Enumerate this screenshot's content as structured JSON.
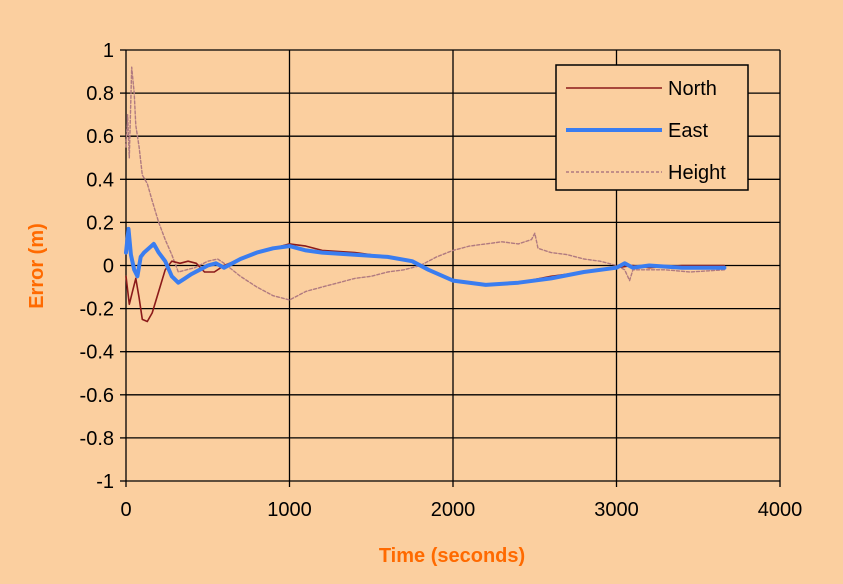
{
  "colors": {
    "background": "#fbcf9f",
    "plot_area": "#fbcf9f",
    "grid": "#000000",
    "axis_title": "#ff6a00"
  },
  "chart_data": {
    "type": "line",
    "title": "",
    "xlabel": "Time (seconds)",
    "ylabel": "Error (m)",
    "xlim": [
      0,
      4000
    ],
    "ylim": [
      -1,
      1
    ],
    "x_ticks": [
      0,
      1000,
      2000,
      3000,
      4000
    ],
    "y_ticks": [
      1,
      0.8,
      0.6,
      0.4,
      0.2,
      0,
      -0.2,
      -0.4,
      -0.6,
      -0.8,
      -1
    ],
    "x_tick_labels": [
      "0",
      "1000",
      "2000",
      "3000",
      "4000"
    ],
    "y_tick_labels": [
      "1",
      "0.8",
      "0.6",
      "0.4",
      "0.2",
      "0",
      "-0.2",
      "-0.4",
      "-0.6",
      "-0.8",
      "-1"
    ],
    "grid": true,
    "legend_position": "top-right",
    "series": [
      {
        "name": "North",
        "color": "#8b1a1a",
        "style": "solid-thin",
        "points": [
          [
            0,
            -0.05
          ],
          [
            20,
            -0.18
          ],
          [
            40,
            -0.12
          ],
          [
            60,
            -0.06
          ],
          [
            80,
            -0.15
          ],
          [
            100,
            -0.25
          ],
          [
            130,
            -0.26
          ],
          [
            160,
            -0.22
          ],
          [
            200,
            -0.12
          ],
          [
            240,
            -0.02
          ],
          [
            280,
            0.02
          ],
          [
            330,
            0.01
          ],
          [
            380,
            0.02
          ],
          [
            430,
            0.01
          ],
          [
            480,
            -0.03
          ],
          [
            540,
            -0.03
          ],
          [
            600,
            0.0
          ],
          [
            700,
            0.03
          ],
          [
            800,
            0.06
          ],
          [
            900,
            0.08
          ],
          [
            1000,
            0.1
          ],
          [
            1100,
            0.09
          ],
          [
            1200,
            0.07
          ],
          [
            1400,
            0.06
          ],
          [
            1600,
            0.04
          ],
          [
            1750,
            0.02
          ],
          [
            1850,
            -0.02
          ],
          [
            2000,
            -0.07
          ],
          [
            2200,
            -0.09
          ],
          [
            2400,
            -0.08
          ],
          [
            2600,
            -0.05
          ],
          [
            2800,
            -0.03
          ],
          [
            3000,
            -0.01
          ],
          [
            3100,
            0.0
          ],
          [
            3200,
            -0.01
          ],
          [
            3400,
            0.0
          ],
          [
            3660,
            0.0
          ]
        ]
      },
      {
        "name": "East",
        "color": "#3a7df0",
        "style": "solid-thick",
        "points": [
          [
            0,
            0.06
          ],
          [
            15,
            0.17
          ],
          [
            30,
            0.05
          ],
          [
            50,
            -0.02
          ],
          [
            70,
            -0.05
          ],
          [
            90,
            0.04
          ],
          [
            110,
            0.06
          ],
          [
            140,
            0.08
          ],
          [
            170,
            0.1
          ],
          [
            200,
            0.06
          ],
          [
            240,
            0.02
          ],
          [
            280,
            -0.05
          ],
          [
            320,
            -0.08
          ],
          [
            360,
            -0.06
          ],
          [
            400,
            -0.04
          ],
          [
            450,
            -0.02
          ],
          [
            500,
            0.0
          ],
          [
            550,
            0.01
          ],
          [
            600,
            -0.01
          ],
          [
            700,
            0.03
          ],
          [
            800,
            0.06
          ],
          [
            900,
            0.08
          ],
          [
            1000,
            0.09
          ],
          [
            1100,
            0.07
          ],
          [
            1200,
            0.06
          ],
          [
            1400,
            0.05
          ],
          [
            1600,
            0.04
          ],
          [
            1750,
            0.02
          ],
          [
            1850,
            -0.02
          ],
          [
            2000,
            -0.07
          ],
          [
            2200,
            -0.09
          ],
          [
            2400,
            -0.08
          ],
          [
            2600,
            -0.06
          ],
          [
            2800,
            -0.03
          ],
          [
            3000,
            -0.01
          ],
          [
            3050,
            0.01
          ],
          [
            3100,
            -0.01
          ],
          [
            3200,
            0.0
          ],
          [
            3400,
            -0.01
          ],
          [
            3660,
            -0.01
          ]
        ]
      },
      {
        "name": "Height",
        "color": "#b07a80",
        "style": "dashed-thin",
        "points": [
          [
            0,
            0.55
          ],
          [
            10,
            0.7
          ],
          [
            20,
            0.5
          ],
          [
            35,
            0.92
          ],
          [
            50,
            0.8
          ],
          [
            60,
            0.65
          ],
          [
            80,
            0.55
          ],
          [
            100,
            0.42
          ],
          [
            130,
            0.38
          ],
          [
            160,
            0.3
          ],
          [
            200,
            0.2
          ],
          [
            240,
            0.12
          ],
          [
            280,
            0.05
          ],
          [
            320,
            -0.03
          ],
          [
            370,
            -0.02
          ],
          [
            420,
            -0.01
          ],
          [
            500,
            0.02
          ],
          [
            560,
            0.03
          ],
          [
            600,
            0.01
          ],
          [
            700,
            -0.05
          ],
          [
            800,
            -0.1
          ],
          [
            900,
            -0.14
          ],
          [
            1000,
            -0.16
          ],
          [
            1100,
            -0.12
          ],
          [
            1200,
            -0.1
          ],
          [
            1300,
            -0.08
          ],
          [
            1400,
            -0.06
          ],
          [
            1500,
            -0.05
          ],
          [
            1600,
            -0.03
          ],
          [
            1700,
            -0.02
          ],
          [
            1800,
            0.0
          ],
          [
            1900,
            0.04
          ],
          [
            2000,
            0.07
          ],
          [
            2100,
            0.09
          ],
          [
            2200,
            0.1
          ],
          [
            2300,
            0.11
          ],
          [
            2400,
            0.1
          ],
          [
            2480,
            0.12
          ],
          [
            2500,
            0.15
          ],
          [
            2520,
            0.08
          ],
          [
            2600,
            0.06
          ],
          [
            2700,
            0.05
          ],
          [
            2800,
            0.03
          ],
          [
            2900,
            0.02
          ],
          [
            3000,
            0.0
          ],
          [
            3050,
            -0.02
          ],
          [
            3080,
            -0.07
          ],
          [
            3100,
            -0.02
          ],
          [
            3200,
            -0.02
          ],
          [
            3300,
            -0.02
          ],
          [
            3450,
            -0.03
          ],
          [
            3660,
            -0.02
          ]
        ]
      }
    ]
  }
}
